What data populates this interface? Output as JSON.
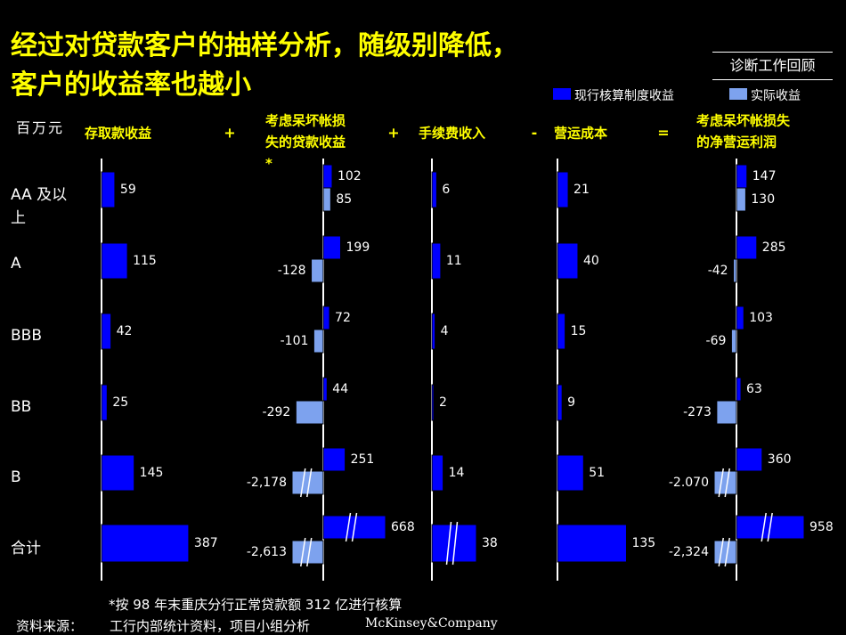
{
  "title": {
    "line1": "经过对贷款客户的抽样分析，随级别降低，",
    "line2": "客户的收益率也越小"
  },
  "tag": "诊断工作回顾",
  "legend": {
    "current": "现行核算制度收益",
    "actual": "实际收益"
  },
  "colors": {
    "current": "#0000ff",
    "actual": "#7da2ee",
    "header": "#ffff00",
    "background": "#000000",
    "text": "#ffffff"
  },
  "unit": "百万元",
  "chart_data": {
    "type": "bar",
    "orientation": "horizontal",
    "categories": [
      "AA 及以上",
      "A",
      "BBB",
      "BB",
      "B",
      "合计"
    ],
    "operators": [
      "+",
      "+",
      "-",
      "="
    ],
    "panels": [
      {
        "header": "存取款收益",
        "series": [
          {
            "name": "现行核算制度收益",
            "values": [
              59,
              115,
              42,
              25,
              145,
              387
            ],
            "labels": [
              "59",
              "115",
              "42",
              "25",
              "145",
              "387"
            ]
          }
        ]
      },
      {
        "header": "考虑呆坏帐损失的贷款收益*",
        "series": [
          {
            "name": "现行核算制度收益",
            "values": [
              102,
              199,
              72,
              44,
              251,
              668
            ],
            "labels": [
              "102",
              "199",
              "72",
              "44",
              "251",
              "668"
            ]
          },
          {
            "name": "实际收益",
            "values": [
              85,
              -128,
              -101,
              -292,
              -2178,
              -2613
            ],
            "labels": [
              "85",
              "-128",
              "-101",
              "-292",
              "-2,178",
              "-2,613"
            ]
          }
        ]
      },
      {
        "header": "手续费收入",
        "series": [
          {
            "name": "现行核算制度收益",
            "values": [
              6,
              11,
              4,
              2,
              14,
              38
            ],
            "labels": [
              "6",
              "11",
              "4",
              "2",
              "14",
              "38"
            ]
          }
        ]
      },
      {
        "header": "营运成本",
        "series": [
          {
            "name": "现行核算制度收益",
            "values": [
              21,
              40,
              15,
              9,
              51,
              135
            ],
            "labels": [
              "21",
              "40",
              "15",
              "9",
              "51",
              "135"
            ]
          }
        ]
      },
      {
        "header": "考虑呆坏帐损失的净营运利润",
        "series": [
          {
            "name": "现行核算制度收益",
            "values": [
              147,
              285,
              103,
              63,
              360,
              958
            ],
            "labels": [
              "147",
              "285",
              "103",
              "63",
              "360",
              "958"
            ]
          },
          {
            "name": "实际收益",
            "values": [
              130,
              -42,
              -69,
              -273,
              -2070,
              -2324
            ],
            "labels": [
              "130",
              "-42",
              "-69",
              "-273",
              "-2.070",
              "-2,324"
            ]
          }
        ]
      }
    ]
  },
  "footnote": "*按 98 年末重庆分行正常贷款额 312 亿进行核算",
  "source": {
    "label": "资料来源：",
    "text": "工行内部统计资料，项目小组分析"
  },
  "brand": "McKinsey&Company"
}
